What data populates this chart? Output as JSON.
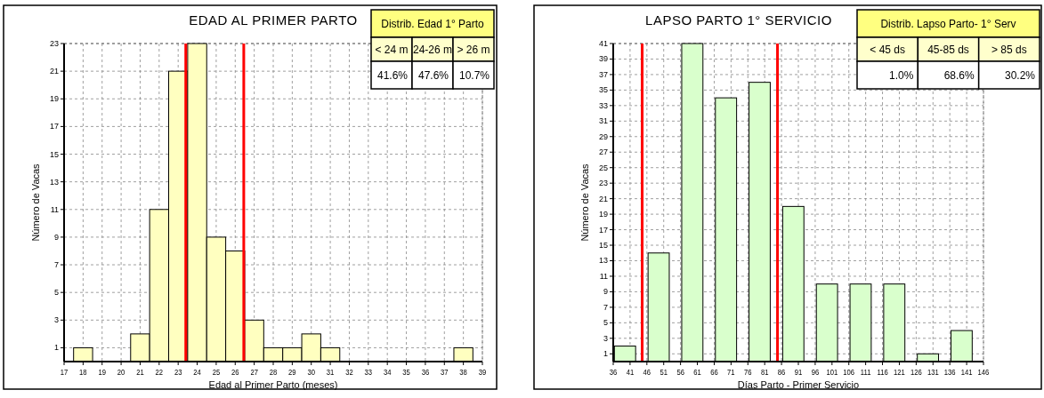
{
  "chart_data": [
    {
      "type": "bar",
      "title": "EDAD AL PRIMER PARTO",
      "xlabel": "Edad al Primer Parto (meses)",
      "ylabel": "Número de Vacas",
      "x": [
        18,
        19,
        20,
        21,
        22,
        23,
        24,
        25,
        26,
        27,
        28,
        29,
        30,
        31,
        32,
        33,
        34,
        35,
        36,
        37,
        38
      ],
      "values": [
        1,
        0,
        0,
        2,
        11,
        21,
        23,
        9,
        8,
        3,
        1,
        1,
        2,
        1,
        0,
        0,
        0,
        0,
        0,
        0,
        1
      ],
      "color": "#ffffc0",
      "xlim": [
        17,
        39
      ],
      "xticks": [
        17,
        18,
        19,
        20,
        21,
        22,
        23,
        24,
        25,
        26,
        27,
        28,
        29,
        30,
        31,
        32,
        33,
        34,
        35,
        36,
        37,
        38,
        39
      ],
      "ylim": [
        0,
        23
      ],
      "yticks": [
        1,
        3,
        5,
        7,
        9,
        11,
        13,
        15,
        17,
        19,
        21,
        23
      ],
      "grid": true,
      "ref_lines": [
        {
          "axis": "x",
          "value": 23.4,
          "color": "#ff0000"
        },
        {
          "axis": "x",
          "value": 26.45,
          "color": "#ff0000"
        }
      ],
      "annotations": [
        "Distrib. Edad 1° Parto",
        "< 24 m",
        "24-26 m",
        "> 26 m",
        "41.6%",
        "47.6%",
        "10.7%"
      ]
    },
    {
      "type": "bar",
      "title": "LAPSO PARTO 1° SERVICIO",
      "xlabel": "Días Parto - Primer Servicio",
      "ylabel": "Número de Vacas",
      "x": [
        39.5,
        49.5,
        59.5,
        69.5,
        79.5,
        89.5,
        99.5,
        109.5,
        119.5,
        129.5,
        139.5
      ],
      "values": [
        2,
        14,
        41,
        34,
        36,
        20,
        10,
        10,
        10,
        1,
        4
      ],
      "color": "#d9ffcc",
      "xlim": [
        36,
        146
      ],
      "xticks": [
        36,
        41,
        46,
        51,
        56,
        61,
        66,
        71,
        76,
        81,
        86,
        91,
        96,
        101,
        106,
        111,
        116,
        121,
        126,
        131,
        136,
        141,
        146
      ],
      "ylim": [
        0,
        41
      ],
      "yticks": [
        1,
        3,
        5,
        7,
        9,
        11,
        13,
        15,
        17,
        19,
        21,
        23,
        25,
        27,
        29,
        31,
        33,
        35,
        37,
        39,
        41
      ],
      "grid": true,
      "ref_lines": [
        {
          "axis": "x",
          "value": 44.6,
          "color": "#ff0000"
        },
        {
          "axis": "x",
          "value": 84.8,
          "color": "#ff0000"
        }
      ],
      "annotations": [
        "Distrib. Lapso Parto- 1° Serv",
        "< 45 ds",
        "45-85 ds",
        "> 85 ds",
        "1.0%",
        "68.6%",
        "30.2%"
      ]
    }
  ]
}
